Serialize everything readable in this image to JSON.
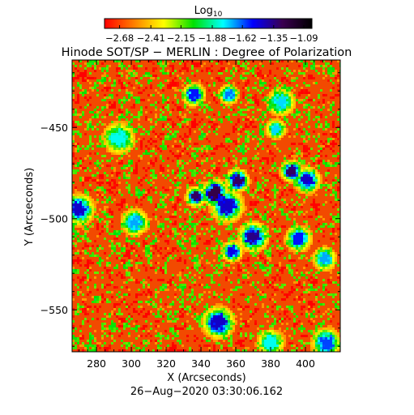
{
  "chart_data": {
    "type": "heatmap",
    "title": "Hinode SOT/SP − MERLIN : Degree of Polarization",
    "xlabel": "X (Arcseconds)",
    "ylabel": "Y (Arcseconds)",
    "xlim": [
      266,
      420
    ],
    "ylim": [
      -573,
      -413
    ],
    "x_ticks": [
      280,
      300,
      320,
      340,
      360,
      380,
      400
    ],
    "x_tick_labels": [
      "280",
      "300",
      "320",
      "340",
      "360",
      "380",
      "400"
    ],
    "y_ticks": [
      -450,
      -500,
      -550
    ],
    "y_tick_labels": [
      "−450",
      "−500",
      "−550"
    ],
    "colorbar": {
      "label": "Log",
      "label_subscript": "10",
      "range": [
        -2.81,
        -1.02
      ],
      "ticks": [
        -2.68,
        -2.41,
        -2.15,
        -1.88,
        -1.62,
        -1.35,
        -1.09
      ],
      "tick_labels": [
        "−2.68",
        "−2.41",
        "−2.15",
        "−1.88",
        "−1.62",
        "−1.35",
        "−1.09"
      ],
      "colors": [
        "#ff0000",
        "#ff7f00",
        "#ffff00",
        "#00e000",
        "#00ffff",
        "#0000ff",
        "#3a0050",
        "#000000"
      ]
    },
    "background_level": -2.62,
    "high_polarization_regions": [
      {
        "x": 337,
        "y": -488,
        "level": -1.3
      },
      {
        "x": 348,
        "y": -486,
        "level": -1.25
      },
      {
        "x": 361,
        "y": -479,
        "level": -1.3
      },
      {
        "x": 355,
        "y": -493,
        "level": -1.45
      },
      {
        "x": 370,
        "y": -510,
        "level": -1.35
      },
      {
        "x": 358,
        "y": -518,
        "level": -1.5
      },
      {
        "x": 392,
        "y": -474,
        "level": -1.3
      },
      {
        "x": 401,
        "y": -479,
        "level": -1.45
      },
      {
        "x": 396,
        "y": -511,
        "level": -1.55
      },
      {
        "x": 270,
        "y": -495,
        "level": -1.45
      },
      {
        "x": 350,
        "y": -557,
        "level": -1.45
      },
      {
        "x": 336,
        "y": -432,
        "level": -1.55
      },
      {
        "x": 356,
        "y": -432,
        "level": -1.65
      },
      {
        "x": 383,
        "y": -451,
        "level": -1.75
      },
      {
        "x": 386,
        "y": -436,
        "level": -1.75
      },
      {
        "x": 302,
        "y": -502,
        "level": -1.7
      },
      {
        "x": 411,
        "y": -522,
        "level": -1.7
      },
      {
        "x": 380,
        "y": -568,
        "level": -1.8
      },
      {
        "x": 412,
        "y": -568,
        "level": -1.6
      },
      {
        "x": 293,
        "y": -456,
        "level": -1.8
      }
    ]
  },
  "date_label": "26−Aug−2020 03:30:06.162"
}
